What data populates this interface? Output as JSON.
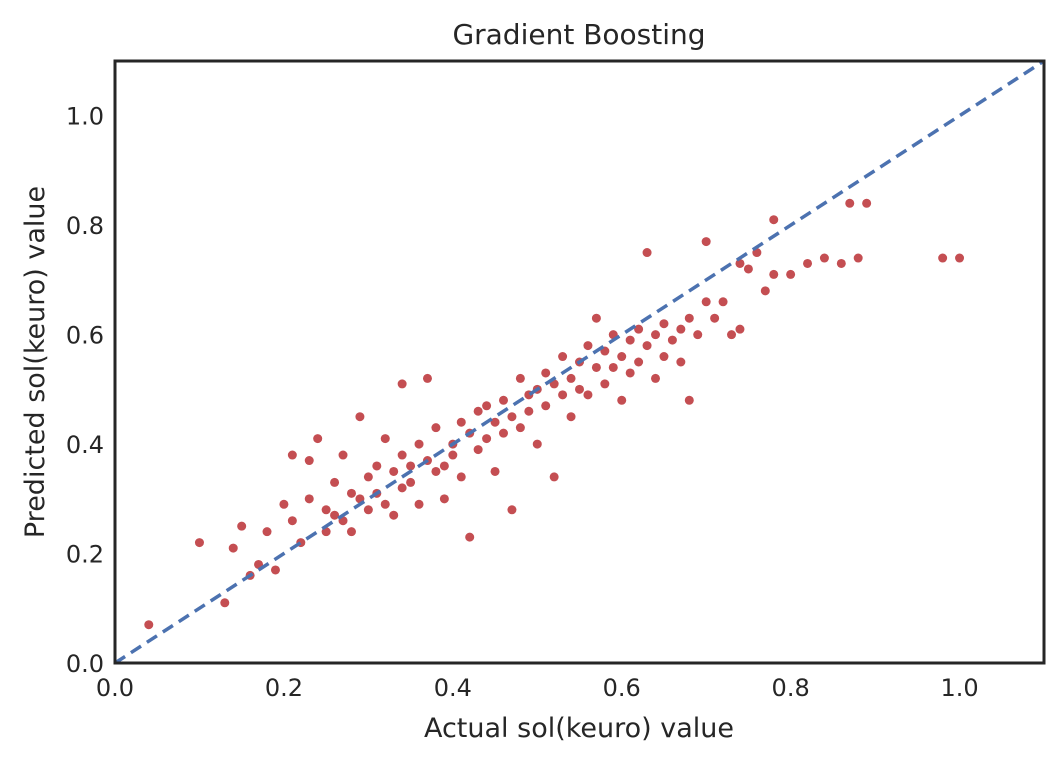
{
  "chart_data": {
    "type": "scatter",
    "title": "Gradient Boosting",
    "xlabel": "Actual sol(keuro) value",
    "ylabel": "Predicted sol(keuro) value",
    "xlim": [
      0.0,
      1.1
    ],
    "ylim": [
      0.0,
      1.1
    ],
    "xticks": [
      "0.0",
      "0.2",
      "0.4",
      "0.6",
      "0.8",
      "1.0"
    ],
    "yticks": [
      "0.0",
      "0.2",
      "0.4",
      "0.6",
      "0.8",
      "1.0"
    ],
    "grid": false,
    "reference_line": {
      "x": [
        0.0,
        1.1
      ],
      "y": [
        0.0,
        1.1
      ],
      "style": "dashed"
    },
    "colors": {
      "points": "#c44e52",
      "reference_line": "#4c72b0",
      "frame": "#262626"
    },
    "series": [
      {
        "points": [
          [
            0.04,
            0.07
          ],
          [
            0.1,
            0.22
          ],
          [
            0.13,
            0.11
          ],
          [
            0.14,
            0.21
          ],
          [
            0.15,
            0.25
          ],
          [
            0.16,
            0.16
          ],
          [
            0.17,
            0.18
          ],
          [
            0.18,
            0.24
          ],
          [
            0.19,
            0.17
          ],
          [
            0.2,
            0.29
          ],
          [
            0.21,
            0.38
          ],
          [
            0.21,
            0.26
          ],
          [
            0.22,
            0.22
          ],
          [
            0.23,
            0.3
          ],
          [
            0.23,
            0.37
          ],
          [
            0.24,
            0.41
          ],
          [
            0.25,
            0.28
          ],
          [
            0.25,
            0.24
          ],
          [
            0.26,
            0.33
          ],
          [
            0.26,
            0.27
          ],
          [
            0.27,
            0.26
          ],
          [
            0.27,
            0.38
          ],
          [
            0.28,
            0.31
          ],
          [
            0.28,
            0.24
          ],
          [
            0.29,
            0.3
          ],
          [
            0.29,
            0.45
          ],
          [
            0.3,
            0.28
          ],
          [
            0.3,
            0.34
          ],
          [
            0.31,
            0.36
          ],
          [
            0.31,
            0.31
          ],
          [
            0.32,
            0.29
          ],
          [
            0.32,
            0.41
          ],
          [
            0.33,
            0.35
          ],
          [
            0.33,
            0.27
          ],
          [
            0.34,
            0.38
          ],
          [
            0.34,
            0.32
          ],
          [
            0.34,
            0.51
          ],
          [
            0.35,
            0.36
          ],
          [
            0.35,
            0.33
          ],
          [
            0.36,
            0.4
          ],
          [
            0.36,
            0.29
          ],
          [
            0.37,
            0.52
          ],
          [
            0.37,
            0.37
          ],
          [
            0.38,
            0.35
          ],
          [
            0.38,
            0.43
          ],
          [
            0.39,
            0.36
          ],
          [
            0.39,
            0.3
          ],
          [
            0.4,
            0.4
          ],
          [
            0.4,
            0.38
          ],
          [
            0.41,
            0.44
          ],
          [
            0.41,
            0.34
          ],
          [
            0.42,
            0.42
          ],
          [
            0.42,
            0.23
          ],
          [
            0.43,
            0.46
          ],
          [
            0.43,
            0.39
          ],
          [
            0.44,
            0.41
          ],
          [
            0.44,
            0.47
          ],
          [
            0.45,
            0.44
          ],
          [
            0.45,
            0.35
          ],
          [
            0.46,
            0.48
          ],
          [
            0.46,
            0.42
          ],
          [
            0.47,
            0.45
          ],
          [
            0.47,
            0.28
          ],
          [
            0.48,
            0.52
          ],
          [
            0.48,
            0.43
          ],
          [
            0.49,
            0.49
          ],
          [
            0.49,
            0.46
          ],
          [
            0.5,
            0.5
          ],
          [
            0.5,
            0.4
          ],
          [
            0.51,
            0.53
          ],
          [
            0.51,
            0.47
          ],
          [
            0.52,
            0.51
          ],
          [
            0.52,
            0.34
          ],
          [
            0.53,
            0.56
          ],
          [
            0.53,
            0.49
          ],
          [
            0.54,
            0.52
          ],
          [
            0.54,
            0.45
          ],
          [
            0.55,
            0.55
          ],
          [
            0.55,
            0.5
          ],
          [
            0.56,
            0.58
          ],
          [
            0.56,
            0.49
          ],
          [
            0.57,
            0.54
          ],
          [
            0.57,
            0.63
          ],
          [
            0.58,
            0.57
          ],
          [
            0.58,
            0.51
          ],
          [
            0.59,
            0.6
          ],
          [
            0.59,
            0.54
          ],
          [
            0.6,
            0.56
          ],
          [
            0.6,
            0.48
          ],
          [
            0.61,
            0.59
          ],
          [
            0.61,
            0.53
          ],
          [
            0.62,
            0.61
          ],
          [
            0.62,
            0.55
          ],
          [
            0.63,
            0.58
          ],
          [
            0.63,
            0.75
          ],
          [
            0.64,
            0.6
          ],
          [
            0.64,
            0.52
          ],
          [
            0.65,
            0.62
          ],
          [
            0.65,
            0.56
          ],
          [
            0.66,
            0.59
          ],
          [
            0.67,
            0.61
          ],
          [
            0.67,
            0.55
          ],
          [
            0.68,
            0.63
          ],
          [
            0.68,
            0.48
          ],
          [
            0.69,
            0.6
          ],
          [
            0.7,
            0.77
          ],
          [
            0.7,
            0.66
          ],
          [
            0.71,
            0.63
          ],
          [
            0.72,
            0.66
          ],
          [
            0.73,
            0.6
          ],
          [
            0.74,
            0.73
          ],
          [
            0.74,
            0.61
          ],
          [
            0.75,
            0.72
          ],
          [
            0.76,
            0.75
          ],
          [
            0.77,
            0.68
          ],
          [
            0.78,
            0.81
          ],
          [
            0.78,
            0.71
          ],
          [
            0.8,
            0.71
          ],
          [
            0.82,
            0.73
          ],
          [
            0.84,
            0.74
          ],
          [
            0.86,
            0.73
          ],
          [
            0.87,
            0.84
          ],
          [
            0.88,
            0.74
          ],
          [
            0.89,
            0.84
          ],
          [
            0.98,
            0.74
          ],
          [
            1.0,
            0.74
          ]
        ]
      }
    ]
  }
}
